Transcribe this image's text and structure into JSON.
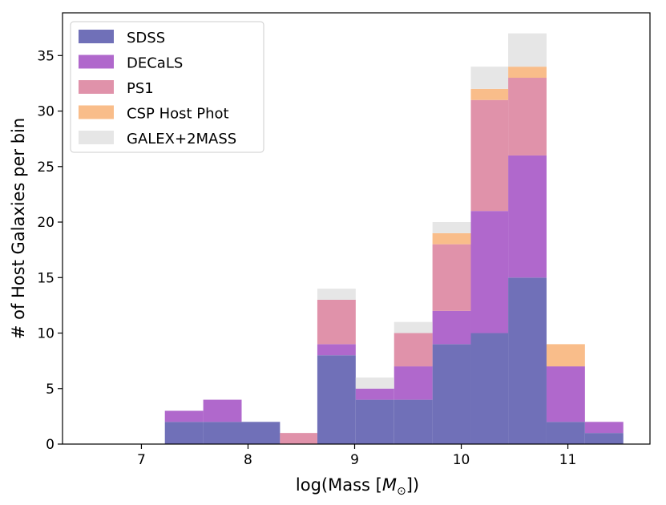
{
  "chart_data": {
    "type": "bar",
    "stacked": true,
    "title": "",
    "xlabel": "log(Mass [",
    "xlabel_symbol": "M",
    "xlabel_subscript": "⊙",
    "xlabel_suffix": "])",
    "ylabel": "# of Host Galaxies per bin",
    "xlim": [
      6.26,
      11.77
    ],
    "ylim": [
      0,
      38.85
    ],
    "xticks": [
      7,
      8,
      9,
      10,
      11
    ],
    "xtick_labels": [
      "7",
      "8",
      "9",
      "10",
      "11"
    ],
    "yticks": [
      0,
      5,
      10,
      15,
      20,
      25,
      30,
      35
    ],
    "ytick_labels": [
      "0",
      "5",
      "10",
      "15",
      "20",
      "25",
      "30",
      "35"
    ],
    "legend_position": "top-left",
    "bin_edges": [
      7.22,
      7.58,
      7.94,
      8.3,
      8.65,
      9.01,
      9.37,
      9.73,
      10.09,
      10.44,
      10.8,
      11.16,
      11.52
    ],
    "series": [
      {
        "name": "SDSS",
        "color": "#7070b8",
        "values": [
          2,
          2,
          2,
          0,
          8,
          4,
          4,
          9,
          10,
          15,
          2,
          1
        ]
      },
      {
        "name": "DECaLS",
        "color": "#b068cc",
        "values": [
          1,
          2,
          0,
          0,
          1,
          1,
          3,
          3,
          11,
          11,
          5,
          1
        ]
      },
      {
        "name": "PS1",
        "color": "#e092aa",
        "values": [
          0,
          0,
          0,
          1,
          4,
          0,
          3,
          6,
          10,
          7,
          0,
          0
        ]
      },
      {
        "name": "CSP Host Phot",
        "color": "#f9bd8a",
        "values": [
          0,
          0,
          0,
          0,
          0,
          0,
          0,
          1,
          1,
          1,
          2,
          0
        ]
      },
      {
        "name": "GALEX+2MASS",
        "color": "#e6e6e6",
        "values": [
          0,
          0,
          0,
          0,
          1,
          1,
          1,
          1,
          2,
          3,
          0,
          0
        ]
      }
    ]
  }
}
